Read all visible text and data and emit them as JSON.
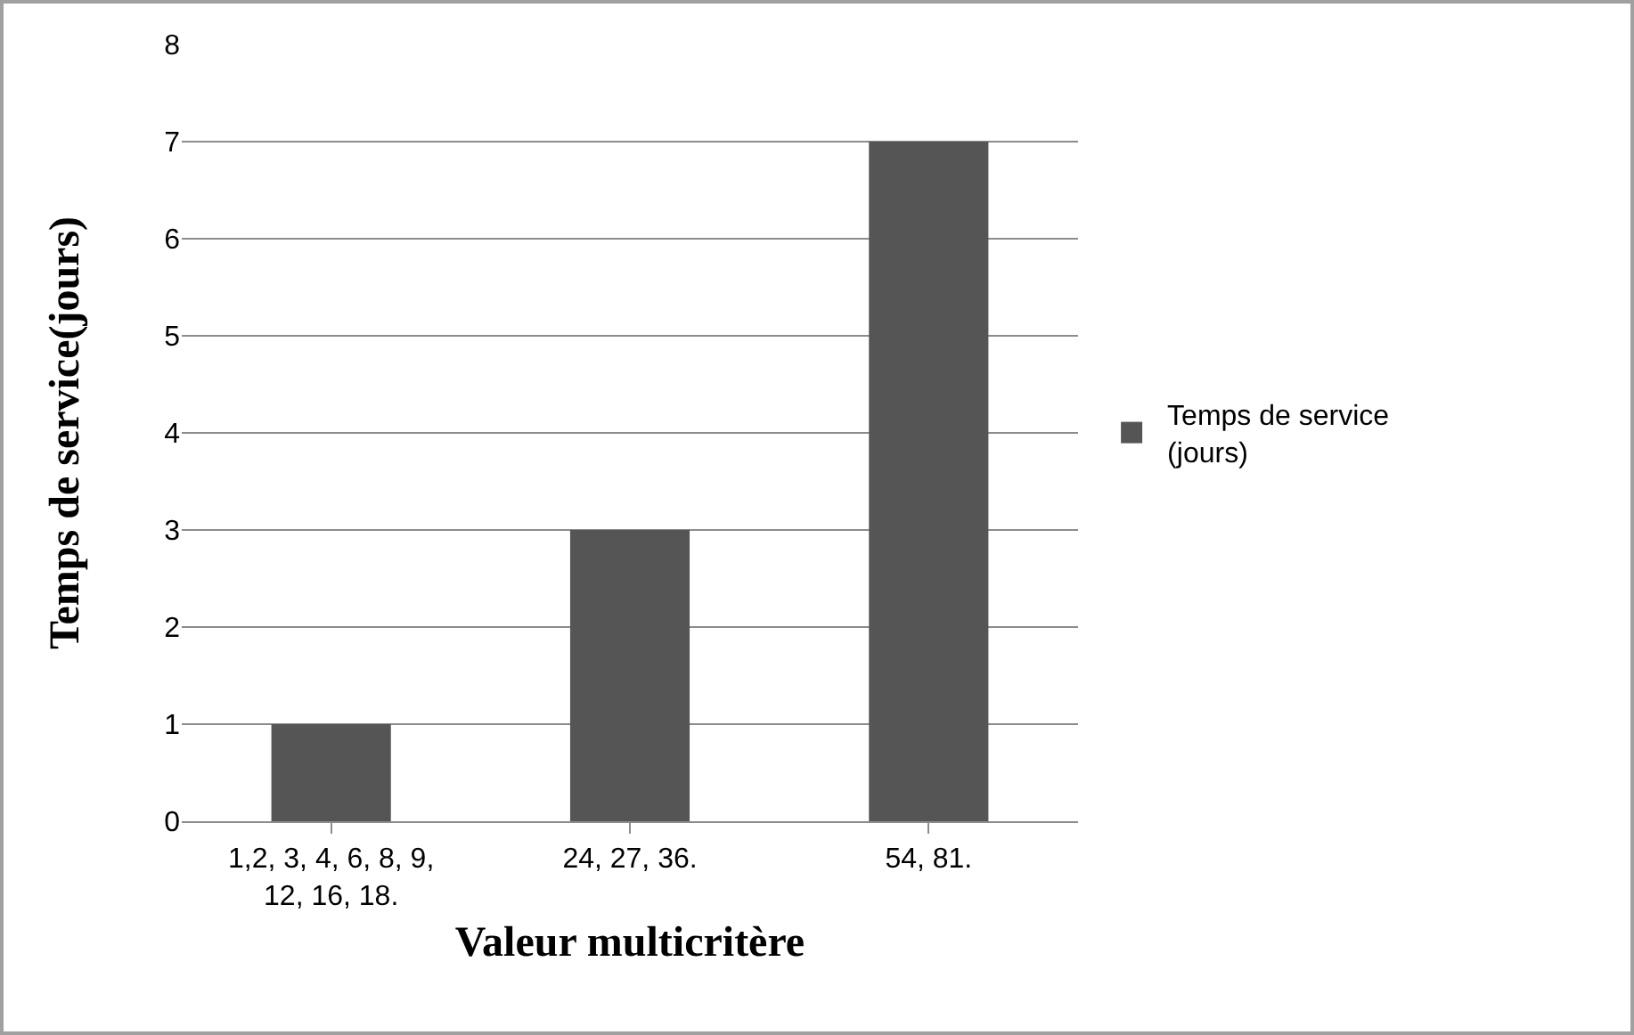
{
  "chart_data": {
    "type": "bar",
    "xlabel": "Valeur multicritère",
    "ylabel": "Temps de service(jours)",
    "categories": [
      "1,2, 3, 4, 6, 8, 9, 12, 16, 18.",
      "24, 27, 36.",
      "54, 81."
    ],
    "series": [
      {
        "name": "Temps de service (jours)",
        "color": "#555555",
        "values": [
          1,
          3,
          7
        ]
      }
    ],
    "ylim": [
      0,
      8
    ],
    "yticks": [
      0,
      1,
      2,
      3,
      4,
      5,
      6,
      7,
      8
    ],
    "grid": "y",
    "legend": "right"
  }
}
